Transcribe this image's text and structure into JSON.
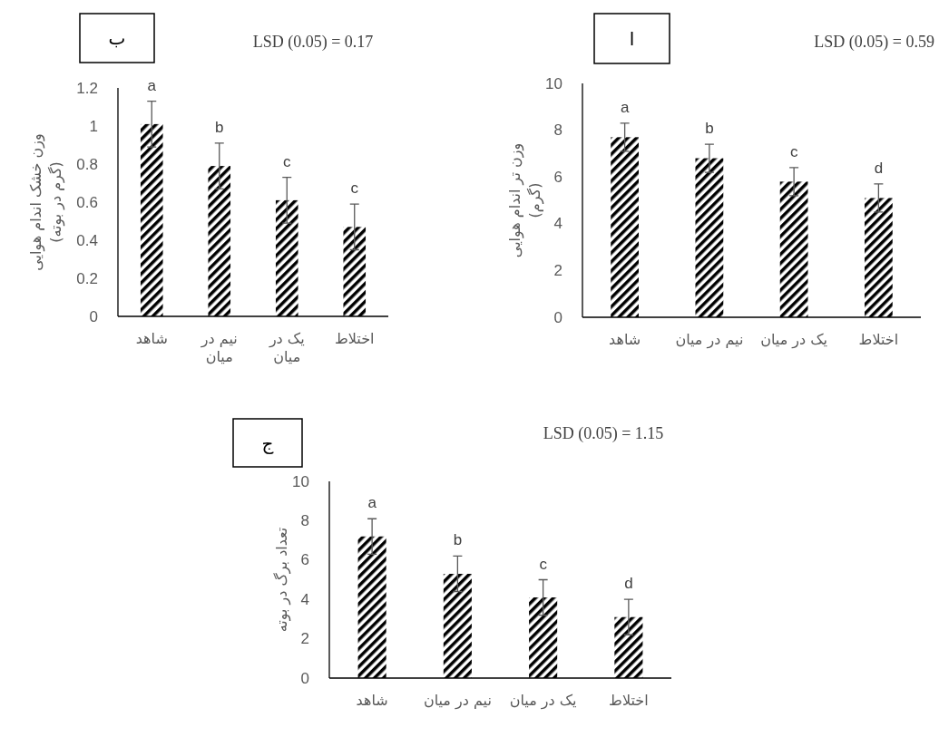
{
  "chart_data": [
    {
      "type": "bar",
      "title": "ب",
      "ylabel": "وزن خشک اندام هوایی (گرم در بوته)",
      "categories": [
        "شاهد",
        "نیم در میان",
        "یک در میان",
        "اختلاط"
      ],
      "values": [
        1.01,
        0.79,
        0.61,
        0.47
      ],
      "errors": [
        0.12,
        0.12,
        0.12,
        0.12
      ],
      "color": "#000000",
      "ylim": [
        0,
        1.2
      ],
      "yticks": [
        0,
        {
          "value": 0.2,
          "label": "0.2"
        },
        {
          "value": 0.4,
          "label": "0.4"
        },
        {
          "value": 0.6,
          "label": "0.6"
        },
        {
          "value": 0.8,
          "label": "0.8"
        },
        1,
        {
          "value": 1.2,
          "label": "1.2"
        }
      ],
      "annotations": [
        "LSD (0.05) = 0.17",
        {
          "text": "a",
          "x": "شاهد",
          "y": 1.13
        },
        {
          "text": "b",
          "x": "نیم در میان",
          "y": 0.91
        },
        {
          "text": "c",
          "x": "یک در میان",
          "y": 0.73
        },
        {
          "text": "c",
          "x": "اختلاط",
          "y": 0.59
        }
      ]
    },
    {
      "type": "bar",
      "title": "ا",
      "ylabel": "وزن تر اندام هوایی (گرم)",
      "categories": [
        "شاهد",
        "نیم در میان",
        "یک در میان",
        "اختلاط"
      ],
      "values": [
        7.7,
        6.8,
        5.8,
        5.1
      ],
      "errors": [
        0.6,
        0.6,
        0.6,
        0.6
      ],
      "color": "#000000",
      "ylim": [
        0,
        10
      ],
      "yticks": [
        0,
        2,
        4,
        6,
        8,
        10
      ],
      "annotations": [
        "LSD (0.05) = 0.59",
        {
          "text": "a",
          "x": "شاهد",
          "y": 8.3
        },
        {
          "text": "b",
          "x": "نیم در میان",
          "y": 7.4
        },
        {
          "text": "c",
          "x": "یک در میان",
          "y": 6.4
        },
        {
          "text": "d",
          "x": "اختلاط",
          "y": 5.7
        }
      ]
    },
    {
      "type": "bar",
      "title": "ج",
      "ylabel": "تعداد برگ در بوته",
      "categories": [
        "شاهد",
        "نیم در میان",
        "یک در میان",
        "اختلاط"
      ],
      "values": [
        7.2,
        5.3,
        4.1,
        3.1
      ],
      "errors": [
        0.9,
        0.9,
        0.9,
        0.9
      ],
      "color": "#000000",
      "ylim": [
        0,
        10
      ],
      "yticks": [
        0,
        2,
        4,
        6,
        8,
        10
      ],
      "annotations": [
        "LSD (0.05) = 1.15",
        {
          "text": "a",
          "x": "شاهد",
          "y": 8.1
        },
        {
          "text": "b",
          "x": "نیم در میان",
          "y": 6.2
        },
        {
          "text": "c",
          "x": "یک در میان",
          "y": 5.0
        },
        {
          "text": "d",
          "x": "اختلاط",
          "y": 4.0
        }
      ]
    }
  ]
}
